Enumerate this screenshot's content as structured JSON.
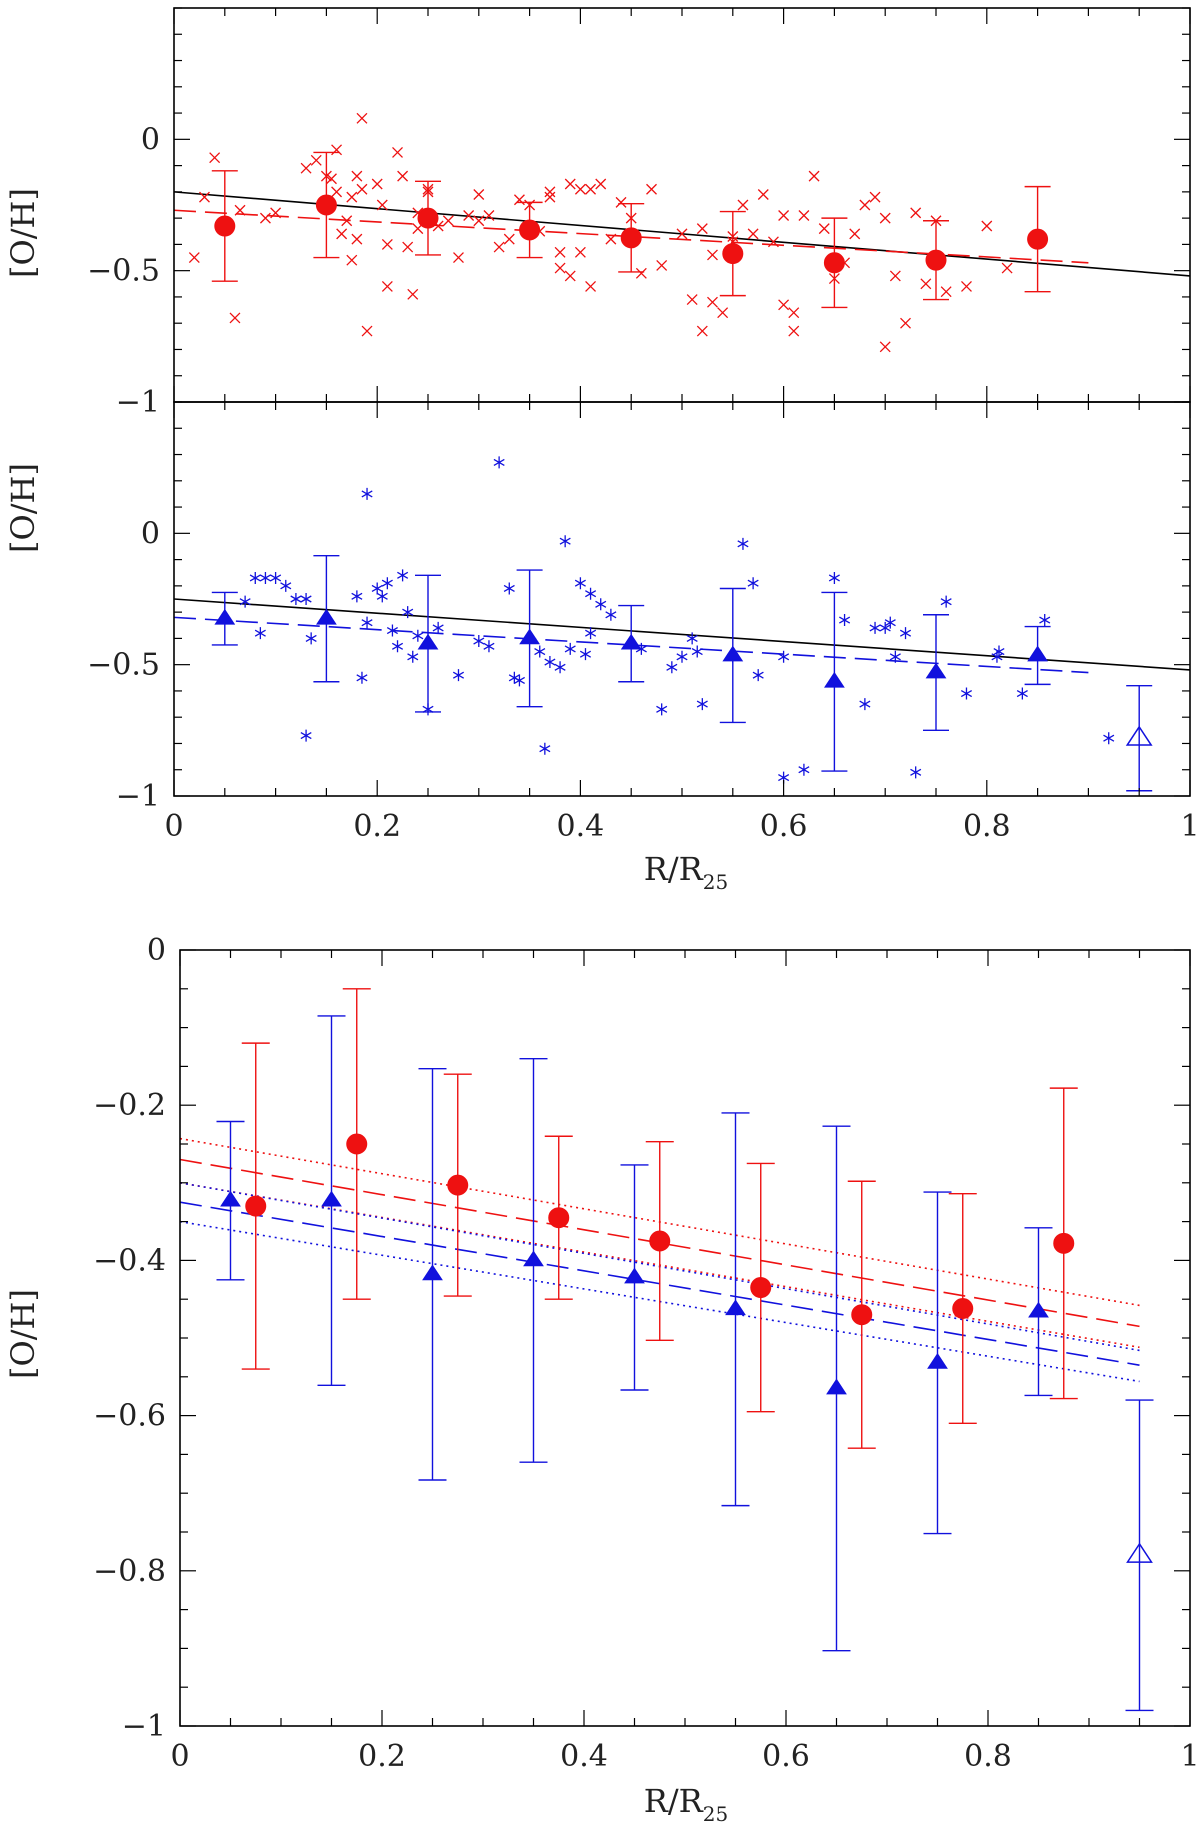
{
  "colors": {
    "red": "#ee1111",
    "blue": "#1111dd",
    "black": "#000000"
  },
  "chart_data": [
    {
      "type": "scatter",
      "xlim": [
        0,
        1
      ],
      "ylim": [
        -1,
        0.5
      ],
      "ylabel": "[O/H]",
      "xlabel": "",
      "xticks": [
        0,
        0.2,
        0.4,
        0.6,
        0.8,
        1
      ],
      "yticks": [
        -1,
        -0.5,
        0
      ],
      "ytick_labels": [
        "−1",
        "−0.5",
        "0"
      ],
      "points": {
        "marker": "cross",
        "color": "red",
        "x": [
          0.02,
          0.03,
          0.04,
          0.06,
          0.065,
          0.09,
          0.1,
          0.13,
          0.14,
          0.15,
          0.155,
          0.16,
          0.16,
          0.165,
          0.17,
          0.175,
          0.175,
          0.18,
          0.18,
          0.185,
          0.185,
          0.19,
          0.2,
          0.205,
          0.21,
          0.21,
          0.22,
          0.225,
          0.23,
          0.235,
          0.24,
          0.24,
          0.25,
          0.25,
          0.26,
          0.27,
          0.28,
          0.29,
          0.3,
          0.3,
          0.31,
          0.32,
          0.33,
          0.34,
          0.35,
          0.36,
          0.37,
          0.37,
          0.38,
          0.38,
          0.39,
          0.39,
          0.4,
          0.4,
          0.41,
          0.41,
          0.42,
          0.43,
          0.44,
          0.45,
          0.46,
          0.47,
          0.48,
          0.5,
          0.51,
          0.52,
          0.52,
          0.53,
          0.53,
          0.54,
          0.55,
          0.55,
          0.56,
          0.57,
          0.58,
          0.59,
          0.6,
          0.6,
          0.61,
          0.61,
          0.62,
          0.63,
          0.64,
          0.65,
          0.66,
          0.67,
          0.68,
          0.69,
          0.7,
          0.7,
          0.71,
          0.72,
          0.73,
          0.74,
          0.75,
          0.76,
          0.78,
          0.8,
          0.82
        ],
        "y": [
          -0.45,
          -0.22,
          -0.07,
          -0.68,
          -0.27,
          -0.3,
          -0.28,
          -0.11,
          -0.08,
          -0.14,
          -0.15,
          -0.04,
          -0.2,
          -0.36,
          -0.31,
          -0.22,
          -0.46,
          -0.14,
          -0.38,
          0.08,
          -0.19,
          -0.73,
          -0.17,
          -0.25,
          -0.56,
          -0.4,
          -0.05,
          -0.14,
          -0.41,
          -0.59,
          -0.34,
          -0.28,
          -0.2,
          -0.19,
          -0.33,
          -0.31,
          -0.45,
          -0.29,
          -0.31,
          -0.21,
          -0.29,
          -0.41,
          -0.38,
          -0.23,
          -0.25,
          -0.35,
          -0.2,
          -0.22,
          -0.43,
          -0.49,
          -0.17,
          -0.52,
          -0.19,
          -0.43,
          -0.19,
          -0.56,
          -0.17,
          -0.38,
          -0.24,
          -0.3,
          -0.51,
          -0.19,
          -0.48,
          -0.36,
          -0.61,
          -0.34,
          -0.73,
          -0.62,
          -0.44,
          -0.66,
          -0.39,
          -0.37,
          -0.25,
          -0.36,
          -0.21,
          -0.39,
          -0.63,
          -0.29,
          -0.66,
          -0.73,
          -0.29,
          -0.14,
          -0.34,
          -0.53,
          -0.47,
          -0.36,
          -0.25,
          -0.22,
          -0.3,
          -0.79,
          -0.52,
          -0.7,
          -0.28,
          -0.55,
          -0.31,
          -0.58,
          -0.56,
          -0.33,
          -0.49
        ]
      },
      "binned": {
        "marker": "filled-circle",
        "color": "red",
        "x": [
          0.05,
          0.15,
          0.25,
          0.35,
          0.45,
          0.55,
          0.65,
          0.75,
          0.85
        ],
        "y": [
          -0.33,
          -0.25,
          -0.3,
          -0.345,
          -0.375,
          -0.435,
          -0.47,
          -0.46,
          -0.38
        ],
        "err": [
          0.21,
          0.2,
          0.14,
          0.105,
          0.13,
          0.16,
          0.17,
          0.15,
          0.2
        ]
      },
      "lines": [
        {
          "style": "solid",
          "color": "black",
          "x": [
            0,
            1
          ],
          "y": [
            -0.2,
            -0.52
          ]
        },
        {
          "style": "dashed",
          "color": "red",
          "x": [
            0,
            0.9
          ],
          "y": [
            -0.27,
            -0.47
          ]
        }
      ]
    },
    {
      "type": "scatter",
      "xlim": [
        0,
        1
      ],
      "ylim": [
        -1,
        0.5
      ],
      "ylabel": "[O/H]",
      "xlabel": "R/R25",
      "xticks": [
        0,
        0.2,
        0.4,
        0.6,
        0.8,
        1
      ],
      "xtick_labels": [
        "0",
        "0.2",
        "0.4",
        "0.6",
        "0.8",
        "1"
      ],
      "yticks": [
        -1,
        -0.5,
        0
      ],
      "ytick_labels": [
        "−1",
        "−0.5",
        "0"
      ],
      "points": {
        "marker": "asterisk",
        "color": "blue",
        "x": [
          0.07,
          0.08,
          0.085,
          0.09,
          0.1,
          0.11,
          0.12,
          0.13,
          0.13,
          0.135,
          0.18,
          0.185,
          0.19,
          0.19,
          0.2,
          0.205,
          0.21,
          0.215,
          0.22,
          0.225,
          0.23,
          0.235,
          0.24,
          0.25,
          0.26,
          0.28,
          0.3,
          0.31,
          0.32,
          0.33,
          0.335,
          0.34,
          0.36,
          0.365,
          0.37,
          0.38,
          0.385,
          0.39,
          0.4,
          0.405,
          0.41,
          0.41,
          0.42,
          0.43,
          0.46,
          0.48,
          0.49,
          0.5,
          0.51,
          0.515,
          0.52,
          0.55,
          0.56,
          0.57,
          0.575,
          0.6,
          0.6,
          0.62,
          0.65,
          0.66,
          0.68,
          0.69,
          0.7,
          0.705,
          0.71,
          0.72,
          0.73,
          0.76,
          0.78,
          0.81,
          0.812,
          0.835,
          0.857,
          0.92
        ],
        "y": [
          -0.26,
          -0.17,
          -0.38,
          -0.17,
          -0.17,
          -0.2,
          -0.25,
          -0.77,
          -0.25,
          -0.4,
          -0.24,
          -0.55,
          0.15,
          -0.34,
          -0.21,
          -0.24,
          -0.19,
          -0.37,
          -0.43,
          -0.16,
          -0.3,
          -0.47,
          -0.39,
          -0.67,
          -0.36,
          -0.54,
          -0.41,
          -0.43,
          0.27,
          -0.21,
          -0.55,
          -0.56,
          -0.45,
          -0.82,
          -0.49,
          -0.51,
          -0.03,
          -0.44,
          -0.19,
          -0.46,
          -0.38,
          -0.23,
          -0.27,
          -0.31,
          -0.44,
          -0.67,
          -0.51,
          -0.47,
          -0.4,
          -0.45,
          -0.65,
          -0.47,
          -0.04,
          -0.19,
          -0.54,
          -0.47,
          -0.93,
          -0.9,
          -0.17,
          -0.33,
          -0.65,
          -0.36,
          -0.36,
          -0.34,
          -0.47,
          -0.38,
          -0.91,
          -0.26,
          -0.61,
          -0.47,
          -0.45,
          -0.61,
          -0.33,
          -0.78
        ]
      },
      "binned": {
        "marker": "filled-triangle",
        "color": "blue",
        "x": [
          0.05,
          0.15,
          0.25,
          0.35,
          0.45,
          0.55,
          0.65,
          0.75,
          0.85
        ],
        "y": [
          -0.325,
          -0.325,
          -0.42,
          -0.4,
          -0.42,
          -0.465,
          -0.565,
          -0.53,
          -0.465
        ],
        "err": [
          0.1,
          0.24,
          0.26,
          0.26,
          0.145,
          0.255,
          0.34,
          0.22,
          0.11
        ]
      },
      "open": {
        "marker": "open-triangle",
        "color": "blue",
        "x": [
          0.95
        ],
        "y": [
          -0.78
        ],
        "err": [
          0.2
        ]
      },
      "lines": [
        {
          "style": "solid",
          "color": "black",
          "x": [
            0,
            1
          ],
          "y": [
            -0.25,
            -0.52
          ]
        },
        {
          "style": "dashed",
          "color": "blue",
          "x": [
            0,
            0.9
          ],
          "y": [
            -0.32,
            -0.53
          ]
        }
      ]
    },
    {
      "type": "scatter",
      "xlim": [
        0,
        1
      ],
      "ylim": [
        -1,
        0
      ],
      "ylabel": "[O/H]",
      "xlabel": "R/R25",
      "xticks": [
        0,
        0.2,
        0.4,
        0.6,
        0.8,
        1
      ],
      "xtick_labels": [
        "0",
        "0.2",
        "0.4",
        "0.6",
        "0.8",
        "1"
      ],
      "yticks": [
        -1,
        -0.8,
        -0.6,
        -0.4,
        -0.2,
        0
      ],
      "ytick_labels": [
        "−1",
        "−0.8",
        "−0.6",
        "−0.4",
        "−0.2",
        "0"
      ],
      "red_binned": {
        "marker": "filled-circle",
        "color": "red",
        "x": [
          0.075,
          0.175,
          0.275,
          0.375,
          0.475,
          0.575,
          0.675,
          0.775,
          0.875
        ],
        "y": [
          -0.33,
          -0.25,
          -0.303,
          -0.345,
          -0.375,
          -0.435,
          -0.47,
          -0.462,
          -0.378
        ],
        "err": [
          0.21,
          0.2,
          0.143,
          0.105,
          0.128,
          0.16,
          0.172,
          0.148,
          0.2
        ]
      },
      "blue_binned": {
        "marker": "filled-triangle",
        "color": "blue",
        "x": [
          0.05,
          0.15,
          0.25,
          0.35,
          0.45,
          0.55,
          0.65,
          0.75,
          0.85
        ],
        "y": [
          -0.323,
          -0.323,
          -0.418,
          -0.4,
          -0.422,
          -0.463,
          -0.565,
          -0.532,
          -0.466
        ],
        "err": [
          0.102,
          0.238,
          0.265,
          0.26,
          0.145,
          0.253,
          0.338,
          0.22,
          0.108
        ]
      },
      "blue_open": {
        "marker": "open-triangle",
        "color": "blue",
        "x": [
          0.95
        ],
        "y": [
          -0.78
        ],
        "err": [
          0.2
        ]
      },
      "lines": [
        {
          "style": "dashed",
          "color": "red",
          "x": [
            0,
            0.95
          ],
          "y": [
            -0.27,
            -0.485
          ]
        },
        {
          "style": "dotted",
          "color": "red",
          "x": [
            0,
            0.95
          ],
          "y": [
            -0.243,
            -0.458
          ]
        },
        {
          "style": "dotted",
          "color": "red",
          "x": [
            0,
            0.95
          ],
          "y": [
            -0.3,
            -0.512
          ]
        },
        {
          "style": "dashed",
          "color": "blue",
          "x": [
            0,
            0.95
          ],
          "y": [
            -0.325,
            -0.535
          ]
        },
        {
          "style": "dotted",
          "color": "blue",
          "x": [
            0,
            0.95
          ],
          "y": [
            -0.3,
            -0.516
          ]
        },
        {
          "style": "dotted",
          "color": "blue",
          "x": [
            0,
            0.95
          ],
          "y": [
            -0.35,
            -0.556
          ]
        }
      ]
    }
  ]
}
